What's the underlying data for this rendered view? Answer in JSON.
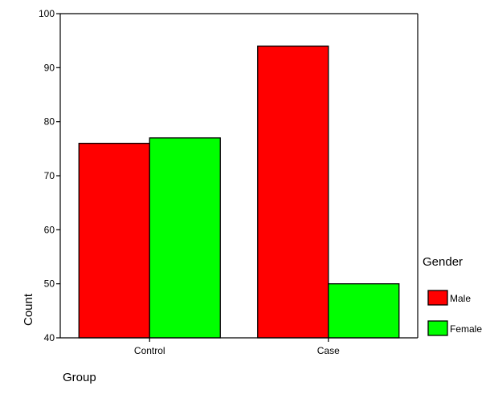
{
  "chart_data": {
    "type": "bar",
    "categories": [
      "Control",
      "Case"
    ],
    "series": [
      {
        "name": "Male",
        "values": [
          76,
          94
        ],
        "color": "#ff0000"
      },
      {
        "name": "Female",
        "values": [
          77,
          50
        ],
        "color": "#00ff00"
      }
    ],
    "xlabel": "Group",
    "ylabel": "Count",
    "ylim": [
      40,
      100
    ],
    "yticks": [
      40,
      50,
      60,
      70,
      80,
      90,
      100
    ],
    "grid": false,
    "legend": {
      "title": "Gender",
      "placement": "right"
    }
  }
}
